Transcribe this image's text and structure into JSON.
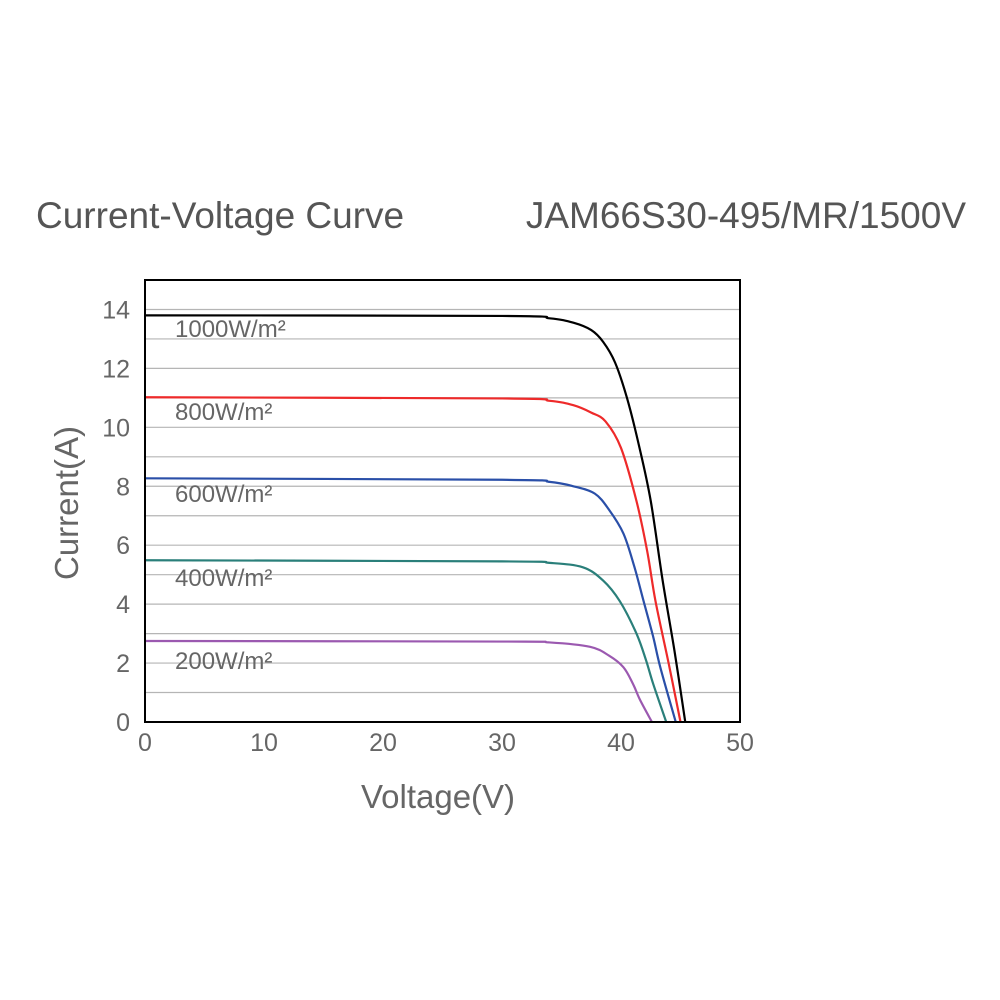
{
  "chart_data": {
    "type": "line",
    "title": "Current-Voltage Curve",
    "subtitle": "JAM66S30-495/MR/1500V",
    "xlabel": "Voltage(V)",
    "ylabel": "Current(A)",
    "xlim": [
      0,
      50
    ],
    "ylim": [
      0,
      15
    ],
    "xticks": [
      0,
      10,
      20,
      30,
      40,
      50
    ],
    "yticks": [
      0,
      2,
      4,
      6,
      8,
      10,
      12,
      14
    ],
    "grid": "horizontal, every 1 A",
    "legend": "inline labels",
    "series": [
      {
        "name": "1000W/m²",
        "color": "#000000",
        "points": [
          [
            0,
            13.8
          ],
          [
            30,
            13.78
          ],
          [
            34,
            13.7
          ],
          [
            36,
            13.55
          ],
          [
            37.5,
            13.3
          ],
          [
            38.5,
            12.9
          ],
          [
            39.5,
            12.2
          ],
          [
            40.5,
            11.0
          ],
          [
            41.5,
            9.4
          ],
          [
            42.5,
            7.5
          ],
          [
            43.5,
            4.8
          ],
          [
            44.5,
            2.4
          ],
          [
            45.4,
            0
          ]
        ]
      },
      {
        "name": "800W/m²",
        "color": "#ee2a2a",
        "points": [
          [
            0,
            11.02
          ],
          [
            30,
            10.98
          ],
          [
            34,
            10.9
          ],
          [
            36,
            10.75
          ],
          [
            37.5,
            10.5
          ],
          [
            38.7,
            10.2
          ],
          [
            40,
            9.3
          ],
          [
            41.3,
            7.5
          ],
          [
            42.2,
            5.8
          ],
          [
            42.9,
            4.1
          ],
          [
            44,
            2.0
          ],
          [
            45,
            0
          ]
        ]
      },
      {
        "name": "600W/m²",
        "color": "#2a4fa8",
        "points": [
          [
            0,
            8.27
          ],
          [
            30,
            8.22
          ],
          [
            34,
            8.15
          ],
          [
            36,
            8.0
          ],
          [
            37.8,
            7.75
          ],
          [
            39,
            7.2
          ],
          [
            40.2,
            6.4
          ],
          [
            41.1,
            5.3
          ],
          [
            41.9,
            4.1
          ],
          [
            42.7,
            2.9
          ],
          [
            43.3,
            1.86
          ],
          [
            44.6,
            0
          ]
        ]
      },
      {
        "name": "400W/m²",
        "color": "#2a7f7a",
        "points": [
          [
            0,
            5.49
          ],
          [
            30,
            5.45
          ],
          [
            34,
            5.4
          ],
          [
            36.8,
            5.25
          ],
          [
            38.5,
            4.8
          ],
          [
            39.9,
            4.1
          ],
          [
            41.3,
            3.0
          ],
          [
            42.1,
            2.1
          ],
          [
            42.7,
            1.3
          ],
          [
            43.8,
            0
          ]
        ]
      },
      {
        "name": "200W/m²",
        "color": "#9b59b0",
        "points": [
          [
            0,
            2.75
          ],
          [
            30,
            2.73
          ],
          [
            34,
            2.7
          ],
          [
            37.4,
            2.55
          ],
          [
            39,
            2.25
          ],
          [
            40.2,
            1.86
          ],
          [
            41,
            1.3
          ],
          [
            41.6,
            0.75
          ],
          [
            42.6,
            0
          ]
        ]
      }
    ]
  }
}
